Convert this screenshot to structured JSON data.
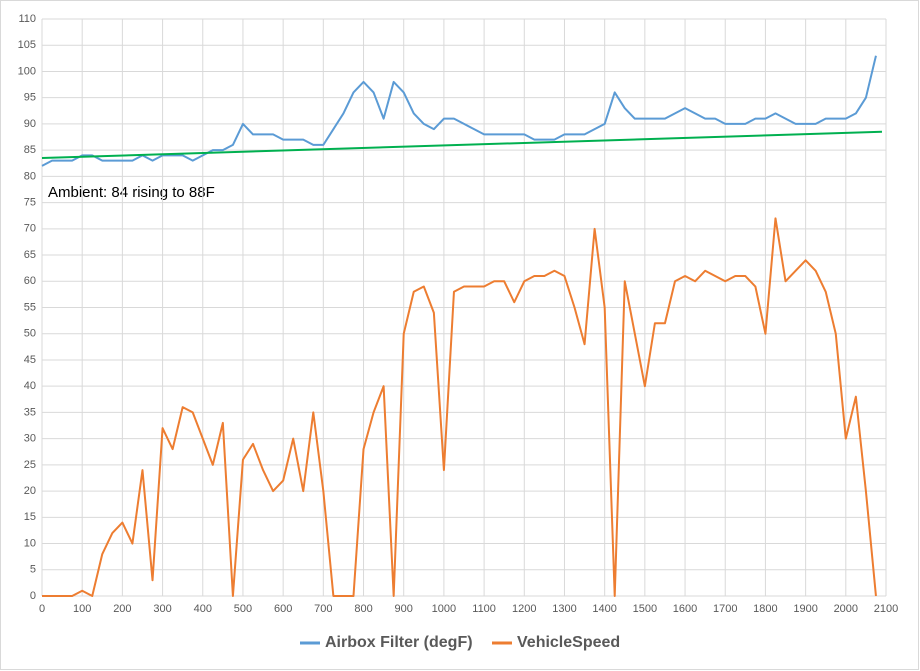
{
  "chart_data": {
    "type": "line",
    "annotation": "Ambient: 84 rising to 88F",
    "x": [
      0,
      25,
      50,
      75,
      100,
      125,
      150,
      175,
      200,
      225,
      250,
      275,
      300,
      325,
      350,
      375,
      400,
      425,
      450,
      475,
      500,
      525,
      550,
      575,
      600,
      625,
      650,
      675,
      700,
      725,
      750,
      775,
      800,
      825,
      850,
      875,
      900,
      925,
      950,
      975,
      1000,
      1025,
      1050,
      1075,
      1100,
      1125,
      1150,
      1175,
      1200,
      1225,
      1250,
      1275,
      1300,
      1325,
      1350,
      1375,
      1400,
      1425,
      1450,
      1475,
      1500,
      1525,
      1550,
      1575,
      1600,
      1625,
      1650,
      1675,
      1700,
      1725,
      1750,
      1775,
      1800,
      1825,
      1850,
      1875,
      1900,
      1925,
      1950,
      1975,
      2000,
      2025,
      2050,
      2075
    ],
    "series": [
      {
        "name": "Airbox Filter (degF)",
        "color": "#5b9bd5",
        "values": [
          82,
          83,
          83,
          83,
          84,
          84,
          83,
          83,
          83,
          83,
          84,
          83,
          84,
          84,
          84,
          83,
          84,
          85,
          85,
          86,
          90,
          88,
          88,
          88,
          87,
          87,
          87,
          86,
          86,
          89,
          92,
          96,
          98,
          96,
          91,
          98,
          96,
          92,
          90,
          89,
          91,
          91,
          90,
          89,
          88,
          88,
          88,
          88,
          88,
          87,
          87,
          87,
          88,
          88,
          88,
          89,
          90,
          96,
          93,
          91,
          91,
          91,
          91,
          92,
          93,
          92,
          91,
          91,
          90,
          90,
          90,
          91,
          91,
          92,
          91,
          90,
          90,
          90,
          91,
          91,
          91,
          92,
          95,
          103
        ]
      },
      {
        "name": "VehicleSpeed",
        "color": "#ed7d31",
        "values": [
          0,
          0,
          0,
          0,
          1,
          0,
          8,
          12,
          14,
          10,
          24,
          3,
          32,
          28,
          36,
          35,
          30,
          25,
          33,
          0,
          26,
          29,
          24,
          20,
          22,
          30,
          20,
          35,
          20,
          0,
          0,
          0,
          28,
          35,
          40,
          0,
          50,
          58,
          59,
          54,
          24,
          58,
          59,
          59,
          59,
          60,
          60,
          56,
          60,
          61,
          61,
          62,
          61,
          55,
          48,
          70,
          55,
          0,
          60,
          50,
          40,
          52,
          52,
          60,
          61,
          60,
          62,
          61,
          60,
          61,
          61,
          59,
          50,
          72,
          60,
          62,
          64,
          62,
          58,
          50,
          30,
          38,
          20,
          0
        ]
      }
    ],
    "ambient_line": {
      "x": [
        0,
        2090
      ],
      "values": [
        83.5,
        88.5
      ],
      "color": "#00b050"
    },
    "xlim": [
      0,
      2100
    ],
    "xticks": [
      0,
      100,
      200,
      300,
      400,
      500,
      600,
      700,
      800,
      900,
      1000,
      1100,
      1200,
      1300,
      1400,
      1500,
      1600,
      1700,
      1800,
      1900,
      2000,
      2100
    ],
    "ylim": [
      0,
      110
    ],
    "yticks": [
      0,
      5,
      10,
      15,
      20,
      25,
      30,
      35,
      40,
      45,
      50,
      55,
      60,
      65,
      70,
      75,
      80,
      85,
      90,
      95,
      100,
      105,
      110
    ],
    "grid": true
  }
}
